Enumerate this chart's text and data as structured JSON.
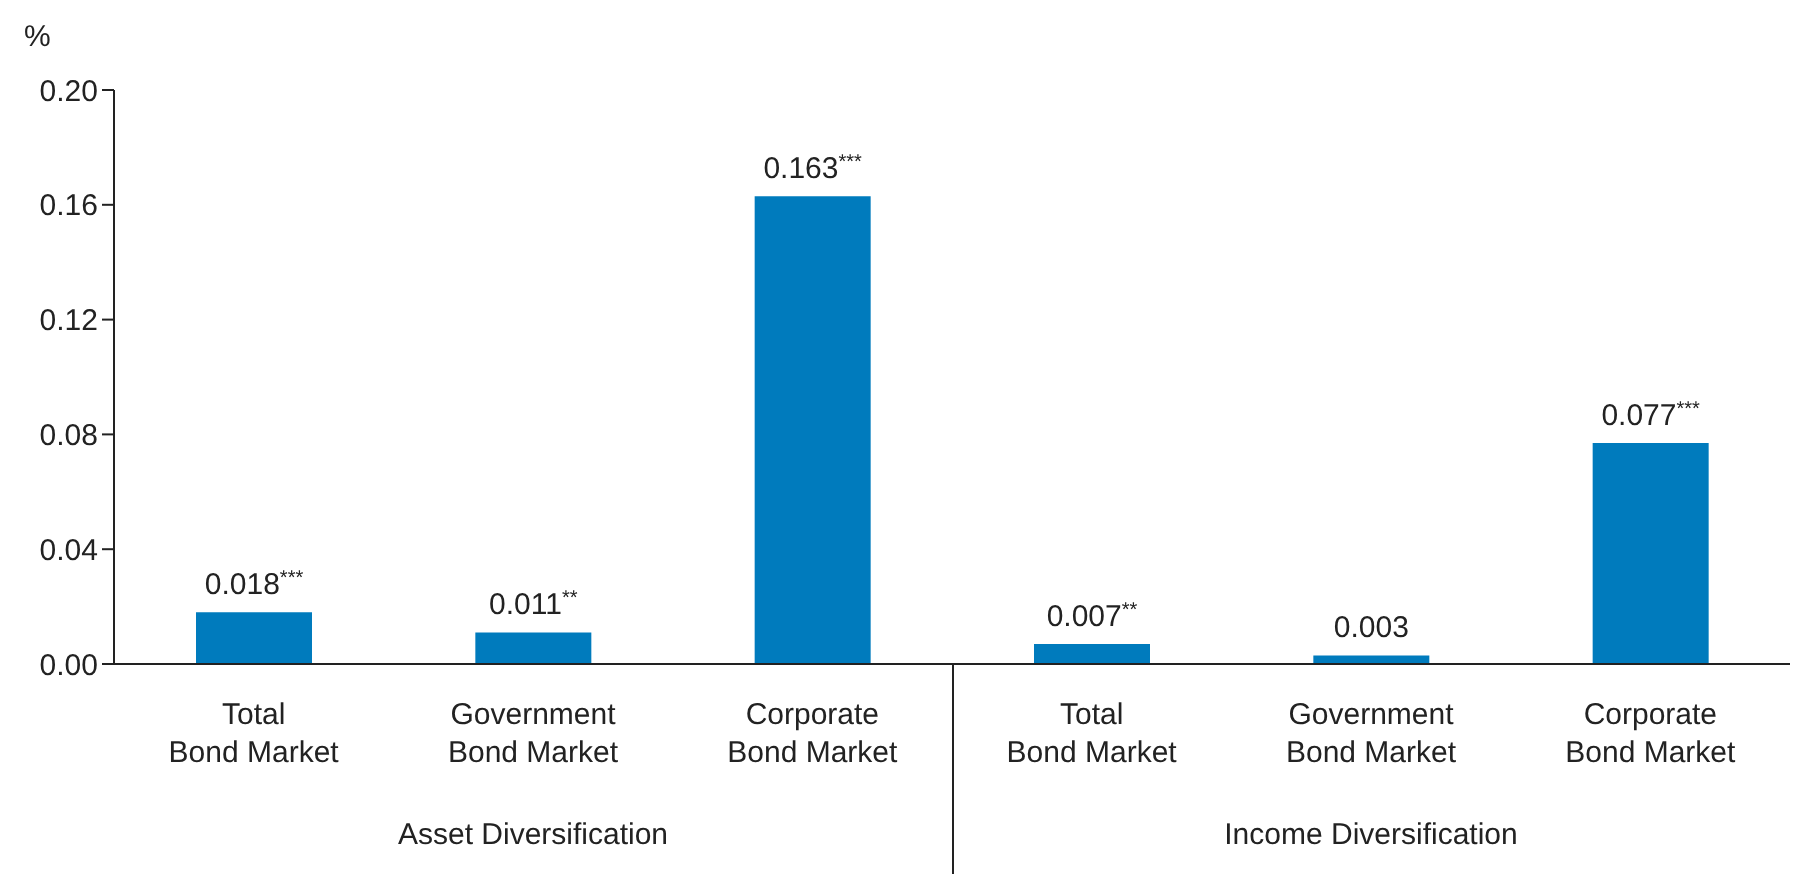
{
  "chart_data": {
    "type": "bar",
    "ylabel": "%",
    "categories": [
      "Total Bond Market",
      "Government Bond Market",
      "Corporate Bond Market",
      "Total Bond Market",
      "Government Bond Market",
      "Corporate Bond Market"
    ],
    "values": [
      0.018,
      0.011,
      0.163,
      0.007,
      0.003,
      0.077
    ],
    "value_labels": [
      "0.018$^{***}$",
      "0.011$^{**}$",
      "0.163$^{***}$",
      "0.007$^{**}$",
      "0.003",
      "0.077$^{***}$"
    ],
    "color": "#007bbd",
    "ylim": [
      0,
      0.2
    ],
    "yticks": [
      {
        "value": 0,
        "label": "0.00"
      },
      {
        "value": 0.04,
        "label": "0.04"
      },
      {
        "value": 0.08,
        "label": "0.08"
      },
      {
        "value": 0.12,
        "label": "0.12"
      },
      {
        "value": 0.16,
        "label": "0.16"
      },
      {
        "value": 0.2,
        "label": "0.20"
      }
    ],
    "annotations": [
      "Asset Diversification",
      "Income Diversification"
    ],
    "grid": false,
    "legend": false
  }
}
